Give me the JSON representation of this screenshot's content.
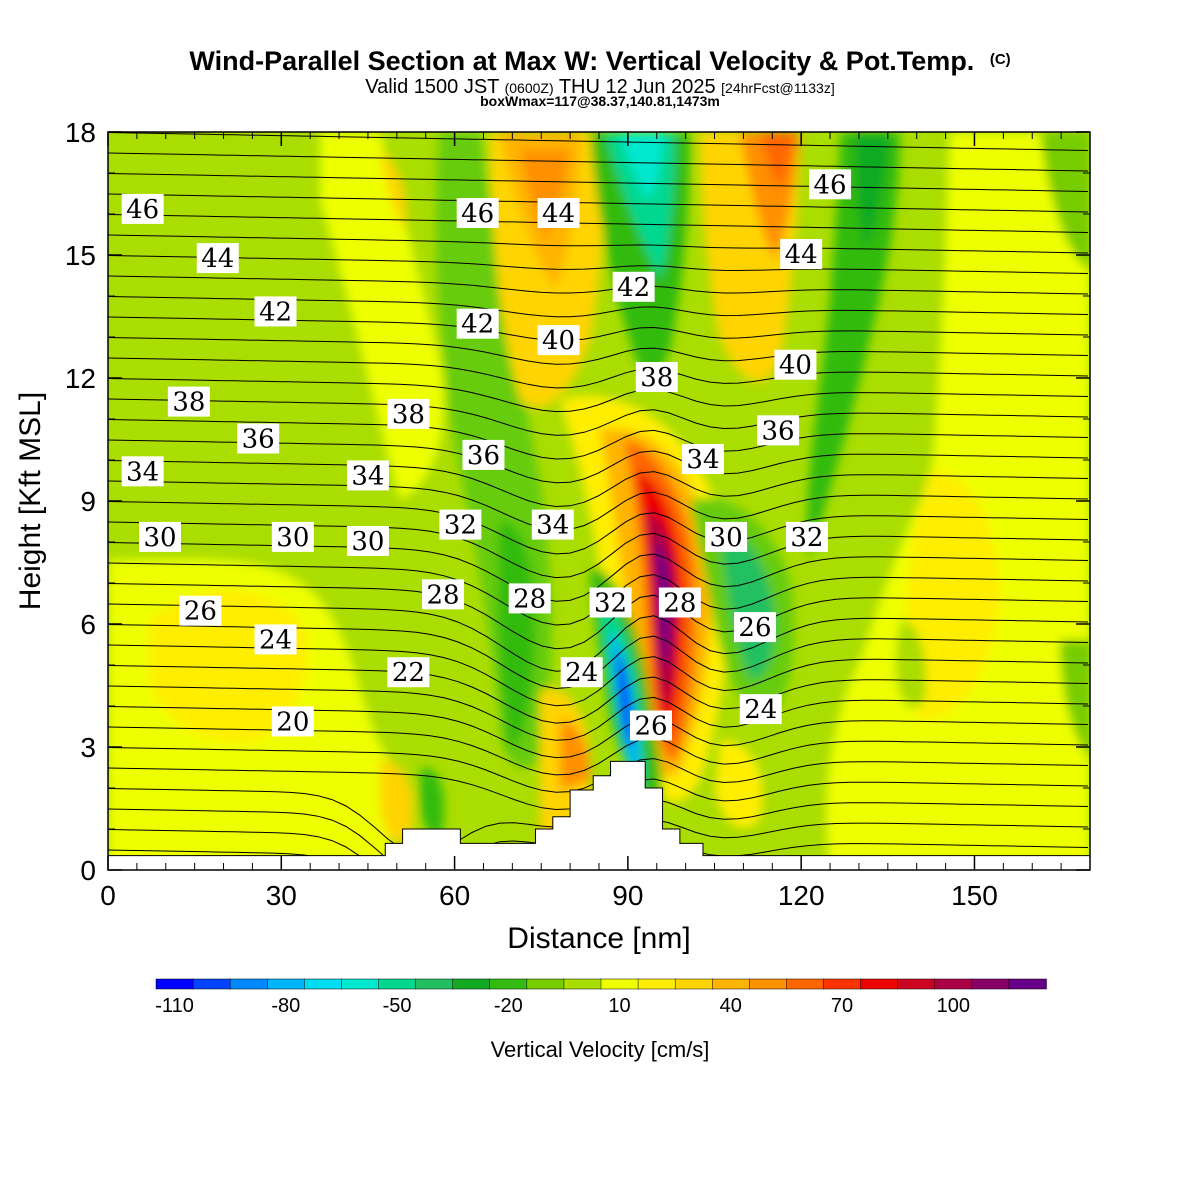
{
  "header": {
    "title": "Wind-Parallel Section at Max W: Vertical Velocity & Pot.Temp.",
    "copyright": "(C)",
    "subtitle_pre": "Valid 1500 JST",
    "subtitle_utc": "(0600Z)",
    "subtitle_post": "THU 12 Jun 2025",
    "subtitle_fcst": "[24hrFcst@1133z]",
    "boxinfo": "boxWmax=117@38.37,140.81,1473m"
  },
  "chart_data": {
    "type": "heatmap",
    "xlabel": "Distance [nm]",
    "ylabel": "Height [Kft MSL]",
    "xlim": [
      0,
      170
    ],
    "ylim": [
      0,
      18
    ],
    "x_ticks": [
      0,
      30,
      60,
      90,
      120,
      150
    ],
    "y_ticks": [
      0,
      3,
      6,
      9,
      12,
      15,
      18
    ],
    "colorbar": {
      "title": "Vertical Velocity [cm/s]",
      "tick_values": [
        -110,
        -80,
        -50,
        -20,
        10,
        40,
        70,
        100
      ],
      "colors": [
        "#0000ff",
        "#0044ff",
        "#0088ff",
        "#00b4ff",
        "#00dcf0",
        "#00e8d0",
        "#00d890",
        "#22c060",
        "#11aa22",
        "#33bb11",
        "#77cc00",
        "#aadd00",
        "#eeff00",
        "#ffee00",
        "#ffd400",
        "#ffb400",
        "#ff9000",
        "#ff6600",
        "#ff3300",
        "#ee0000",
        "#cc0022",
        "#aa0044",
        "#880066",
        "#660088"
      ]
    },
    "theta_contour_labels": [
      {
        "text": "46",
        "x": 6,
        "y": 16.1
      },
      {
        "text": "44",
        "x": 19,
        "y": 14.9
      },
      {
        "text": "42",
        "x": 29,
        "y": 13.6
      },
      {
        "text": "38",
        "x": 14,
        "y": 11.4
      },
      {
        "text": "36",
        "x": 26,
        "y": 10.5
      },
      {
        "text": "34",
        "x": 6,
        "y": 9.7
      },
      {
        "text": "30",
        "x": 9,
        "y": 8.1
      },
      {
        "text": "30",
        "x": 32,
        "y": 8.1
      },
      {
        "text": "30",
        "x": 45,
        "y": 8.0
      },
      {
        "text": "26",
        "x": 16,
        "y": 6.3
      },
      {
        "text": "24",
        "x": 29,
        "y": 5.6
      },
      {
        "text": "22",
        "x": 52,
        "y": 4.8
      },
      {
        "text": "20",
        "x": 32,
        "y": 3.6
      },
      {
        "text": "46",
        "x": 64,
        "y": 16.0
      },
      {
        "text": "44",
        "x": 78,
        "y": 16.0
      },
      {
        "text": "42",
        "x": 64,
        "y": 13.3
      },
      {
        "text": "40",
        "x": 78,
        "y": 12.9
      },
      {
        "text": "38",
        "x": 52,
        "y": 11.1
      },
      {
        "text": "36",
        "x": 65,
        "y": 10.1
      },
      {
        "text": "34",
        "x": 45,
        "y": 9.6
      },
      {
        "text": "32",
        "x": 61,
        "y": 8.4
      },
      {
        "text": "34",
        "x": 77,
        "y": 8.4
      },
      {
        "text": "28",
        "x": 58,
        "y": 6.7
      },
      {
        "text": "28",
        "x": 73,
        "y": 6.6
      },
      {
        "text": "32",
        "x": 87,
        "y": 6.5
      },
      {
        "text": "24",
        "x": 82,
        "y": 4.8
      },
      {
        "text": "26",
        "x": 94,
        "y": 3.5
      },
      {
        "text": "42",
        "x": 91,
        "y": 14.2
      },
      {
        "text": "38",
        "x": 95,
        "y": 12.0
      },
      {
        "text": "34",
        "x": 103,
        "y": 10.0
      },
      {
        "text": "30",
        "x": 107,
        "y": 8.1
      },
      {
        "text": "28",
        "x": 99,
        "y": 6.5
      },
      {
        "text": "26",
        "x": 112,
        "y": 5.9
      },
      {
        "text": "24",
        "x": 113,
        "y": 3.9
      },
      {
        "text": "46",
        "x": 125,
        "y": 16.7
      },
      {
        "text": "44",
        "x": 120,
        "y": 15.0
      },
      {
        "text": "40",
        "x": 119,
        "y": 12.3
      },
      {
        "text": "36",
        "x": 116,
        "y": 10.7
      },
      {
        "text": "32",
        "x": 121,
        "y": 8.1
      }
    ],
    "terrain_profile": [
      {
        "x": 0,
        "h": 0.35
      },
      {
        "x": 48,
        "h": 0.35
      },
      {
        "x": 48,
        "h": 0.65
      },
      {
        "x": 51,
        "h": 0.65
      },
      {
        "x": 51,
        "h": 1.0
      },
      {
        "x": 61,
        "h": 1.0
      },
      {
        "x": 61,
        "h": 0.65
      },
      {
        "x": 74,
        "h": 0.65
      },
      {
        "x": 74,
        "h": 1.0
      },
      {
        "x": 77,
        "h": 1.0
      },
      {
        "x": 77,
        "h": 1.3
      },
      {
        "x": 80,
        "h": 1.3
      },
      {
        "x": 80,
        "h": 1.95
      },
      {
        "x": 84,
        "h": 1.95
      },
      {
        "x": 84,
        "h": 2.3
      },
      {
        "x": 87,
        "h": 2.3
      },
      {
        "x": 87,
        "h": 2.65
      },
      {
        "x": 93,
        "h": 2.65
      },
      {
        "x": 93,
        "h": 2.0
      },
      {
        "x": 96,
        "h": 2.0
      },
      {
        "x": 96,
        "h": 1.0
      },
      {
        "x": 99,
        "h": 1.0
      },
      {
        "x": 99,
        "h": 0.65
      },
      {
        "x": 103,
        "h": 0.65
      },
      {
        "x": 103,
        "h": 0.35
      },
      {
        "x": 170,
        "h": 0.35
      }
    ]
  }
}
